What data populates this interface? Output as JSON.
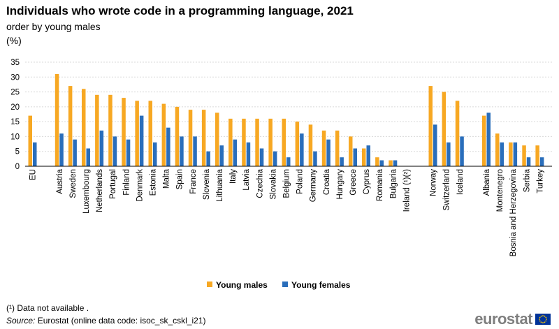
{
  "title": "Individuals who wrote code in a programming language, 2021",
  "subtitle": "order by young males",
  "unit": "(%)",
  "footnote": "(¹) Data not available .",
  "source_label": "Source:",
  "source_text": " Eurostat (online data code: isoc_sk_cskl_i21)",
  "logo_text": "eurostat",
  "colors": {
    "young_males": "#f7a823",
    "young_females": "#2a6ebb",
    "grid": "#d9d9d9"
  },
  "chart_data": {
    "type": "bar",
    "title": "Individuals who wrote code in a programming language, 2021",
    "ylabel": "(%)",
    "ylim": [
      0,
      35
    ],
    "yticks": [
      0,
      5,
      10,
      15,
      20,
      25,
      30,
      35
    ],
    "grid": true,
    "legend_position": "bottom",
    "categories": [
      "EU",
      "Austria",
      "Sweden",
      "Luxembourg",
      "Netherlands",
      "Portugal",
      "Finland",
      "Denmark",
      "Estonia",
      "Malta",
      "Spain",
      "France",
      "Slovenia",
      "Lithuania",
      "Italy",
      "Latvia",
      "Czechia",
      "Slovakia",
      "Belgium",
      "Poland",
      "Germany",
      "Croatia",
      "Hungary",
      "Greece",
      "Cyprus",
      "Romania",
      "Bulgaria",
      "Ireland (¹)(²)",
      "Norway",
      "Switzerland",
      "Iceland",
      "Albania",
      "Montenegro",
      "Bosnia and Herzegovina",
      "Serbia",
      "Turkey"
    ],
    "series": [
      {
        "name": "Young males",
        "values": [
          17,
          31,
          27,
          26,
          24,
          24,
          23,
          22,
          22,
          21,
          20,
          19,
          19,
          18,
          16,
          16,
          16,
          16,
          16,
          15,
          14,
          12,
          12,
          10,
          6,
          3,
          2,
          null,
          27,
          25,
          22,
          17,
          11,
          8,
          7,
          7
        ]
      },
      {
        "name": "Young females",
        "values": [
          8,
          11,
          9,
          6,
          12,
          10,
          9,
          17,
          8,
          13,
          10,
          10,
          5,
          7,
          9,
          8,
          6,
          5,
          3,
          11,
          5,
          9,
          3,
          6,
          7,
          2,
          2,
          null,
          14,
          8,
          10,
          18,
          8,
          8,
          3,
          3
        ]
      }
    ]
  }
}
